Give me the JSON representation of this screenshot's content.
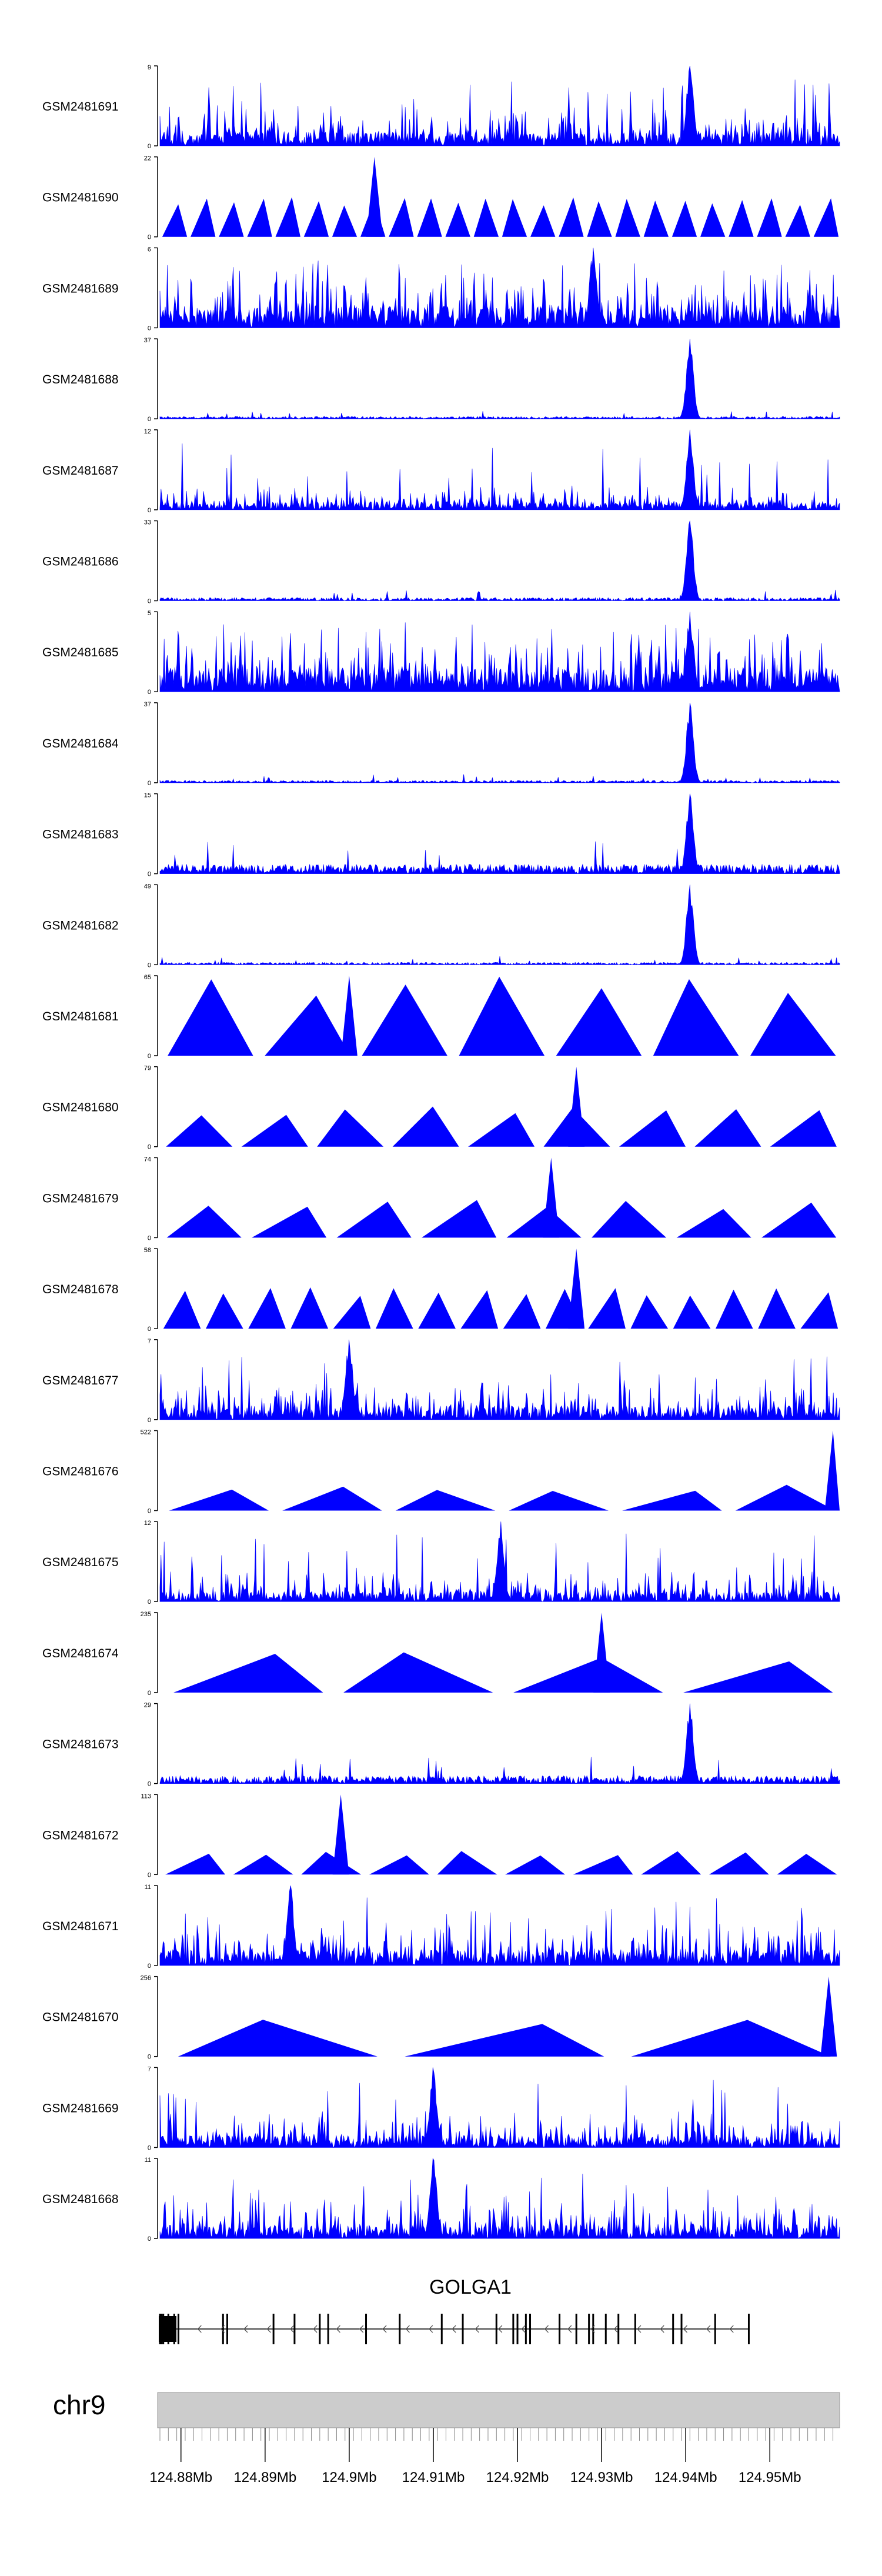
{
  "chart_data": {
    "type": "area",
    "genome": "chr9",
    "gene": "GOLGA1",
    "xlim": [
      124.8775,
      124.9583
    ],
    "x_ticks": [
      124.88,
      124.89,
      124.9,
      124.91,
      124.92,
      124.93,
      124.94,
      124.95
    ],
    "x_tick_labels": [
      "124.88Mb",
      "124.89Mb",
      "124.9Mb",
      "124.91Mb",
      "124.92Mb",
      "124.93Mb",
      "124.94Mb",
      "124.95Mb"
    ],
    "peak_center": 124.9405,
    "tracks": [
      {
        "name": "GSM2481691",
        "ymax": 9,
        "ymax_label": "9",
        "ymin_label": "0",
        "style": "dense",
        "peak": 9,
        "peak_at": 124.9405,
        "noise": 0.35
      },
      {
        "name": "GSM2481690",
        "ymax": 22,
        "ymax_label": "22",
        "ymin_label": "0",
        "style": "triangles",
        "peak_at": 124.903,
        "peak": 22,
        "base": 11,
        "count": 24
      },
      {
        "name": "GSM2481689",
        "ymax": 6,
        "ymax_label": "6",
        "ymin_label": "0",
        "style": "dense",
        "peak": 6,
        "peak_at": 124.929,
        "noise": 0.55
      },
      {
        "name": "GSM2481688",
        "ymax": 37,
        "ymax_label": "37",
        "ymin_label": "0",
        "style": "peak",
        "peak": 37,
        "peak_at": 124.9405,
        "noise": 0.03
      },
      {
        "name": "GSM2481687",
        "ymax": 12,
        "ymax_label": "12",
        "ymin_label": "0",
        "style": "dense",
        "peak": 12,
        "peak_at": 124.9405,
        "noise": 0.2
      },
      {
        "name": "GSM2481686",
        "ymax": 33,
        "ymax_label": "33",
        "ymin_label": "0",
        "style": "peak",
        "peak": 33,
        "peak_at": 124.9405,
        "noise": 0.04
      },
      {
        "name": "GSM2481685",
        "ymax": 5,
        "ymax_label": "5",
        "ymin_label": "0",
        "style": "dense",
        "peak": 5,
        "peak_at": 124.9405,
        "noise": 0.6
      },
      {
        "name": "GSM2481684",
        "ymax": 37,
        "ymax_label": "37",
        "ymin_label": "0",
        "style": "peak",
        "peak": 37,
        "peak_at": 124.9405,
        "noise": 0.03
      },
      {
        "name": "GSM2481683",
        "ymax": 15,
        "ymax_label": "15",
        "ymin_label": "0",
        "style": "peak",
        "peak": 15,
        "peak_at": 124.9405,
        "noise": 0.12
      },
      {
        "name": "GSM2481682",
        "ymax": 49,
        "ymax_label": "49",
        "ymin_label": "0",
        "style": "peak",
        "peak": 49,
        "peak_at": 124.9405,
        "noise": 0.03
      },
      {
        "name": "GSM2481681",
        "ymax": 65,
        "ymax_label": "65",
        "ymin_label": "0",
        "style": "triangles",
        "peak_at": 124.9,
        "peak": 65,
        "base": 65,
        "count": 7
      },
      {
        "name": "GSM2481680",
        "ymax": 79,
        "ymax_label": "79",
        "ymin_label": "0",
        "style": "triangles",
        "peak_at": 124.927,
        "peak": 79,
        "base": 40,
        "count": 9
      },
      {
        "name": "GSM2481679",
        "ymax": 74,
        "ymax_label": "74",
        "ymin_label": "0",
        "style": "triangles",
        "peak_at": 124.924,
        "peak": 74,
        "base": 35,
        "count": 8
      },
      {
        "name": "GSM2481678",
        "ymax": 58,
        "ymax_label": "58",
        "ymin_label": "0",
        "style": "triangles",
        "peak_at": 124.927,
        "peak": 58,
        "base": 30,
        "count": 16
      },
      {
        "name": "GSM2481677",
        "ymax": 7,
        "ymax_label": "7",
        "ymin_label": "0",
        "style": "dense",
        "peak": 7,
        "peak_at": 124.9,
        "noise": 0.35
      },
      {
        "name": "GSM2481676",
        "ymax": 522,
        "ymax_label": "522",
        "ymin_label": "0",
        "style": "triangles",
        "peak_at": 124.9575,
        "peak": 522,
        "base": 170,
        "count": 6
      },
      {
        "name": "GSM2481675",
        "ymax": 12,
        "ymax_label": "12",
        "ymin_label": "0",
        "style": "dense",
        "peak": 12,
        "peak_at": 124.918,
        "noise": 0.25
      },
      {
        "name": "GSM2481674",
        "ymax": 235,
        "ymax_label": "235",
        "ymin_label": "0",
        "style": "triangles",
        "peak_at": 124.93,
        "peak": 235,
        "base": 120,
        "count": 4
      },
      {
        "name": "GSM2481673",
        "ymax": 29,
        "ymax_label": "29",
        "ymin_label": "0",
        "style": "peak",
        "peak": 29,
        "peak_at": 124.9405,
        "noise": 0.1
      },
      {
        "name": "GSM2481672",
        "ymax": 113,
        "ymax_label": "113",
        "ymin_label": "0",
        "style": "triangles",
        "peak_at": 124.899,
        "peak": 113,
        "base": 35,
        "count": 10
      },
      {
        "name": "GSM2481671",
        "ymax": 11,
        "ymax_label": "11",
        "ymin_label": "0",
        "style": "dense",
        "peak": 11,
        "peak_at": 124.893,
        "noise": 0.4
      },
      {
        "name": "GSM2481670",
        "ymax": 256,
        "ymax_label": "256",
        "ymin_label": "0",
        "style": "triangles",
        "peak_at": 124.957,
        "peak": 256,
        "base": 120,
        "count": 3
      },
      {
        "name": "GSM2481669",
        "ymax": 7,
        "ymax_label": "7",
        "ymin_label": "0",
        "style": "dense",
        "peak": 7,
        "peak_at": 124.91,
        "noise": 0.3
      },
      {
        "name": "GSM2481668",
        "ymax": 11,
        "ymax_label": "11",
        "ymin_label": "0",
        "style": "dense",
        "peak": 11,
        "peak_at": 124.91,
        "noise": 0.35
      }
    ],
    "gene_exons": [
      124.8775,
      124.8777,
      124.8779,
      124.8785,
      124.8792,
      124.8797,
      124.885,
      124.8855,
      124.891,
      124.8935,
      124.8965,
      124.8975,
      124.902,
      124.906,
      124.911,
      124.9135,
      124.9175,
      124.9195,
      124.92,
      124.921,
      124.9215,
      124.925,
      124.927,
      124.9285,
      124.929,
      124.9305,
      124.932,
      124.934,
      124.9385,
      124.9395,
      124.9435,
      124.9475
    ]
  },
  "colors": {
    "signal": "#0000ff",
    "axis": "#000000",
    "gene": "#000000",
    "ideogram": "#cccccc"
  }
}
